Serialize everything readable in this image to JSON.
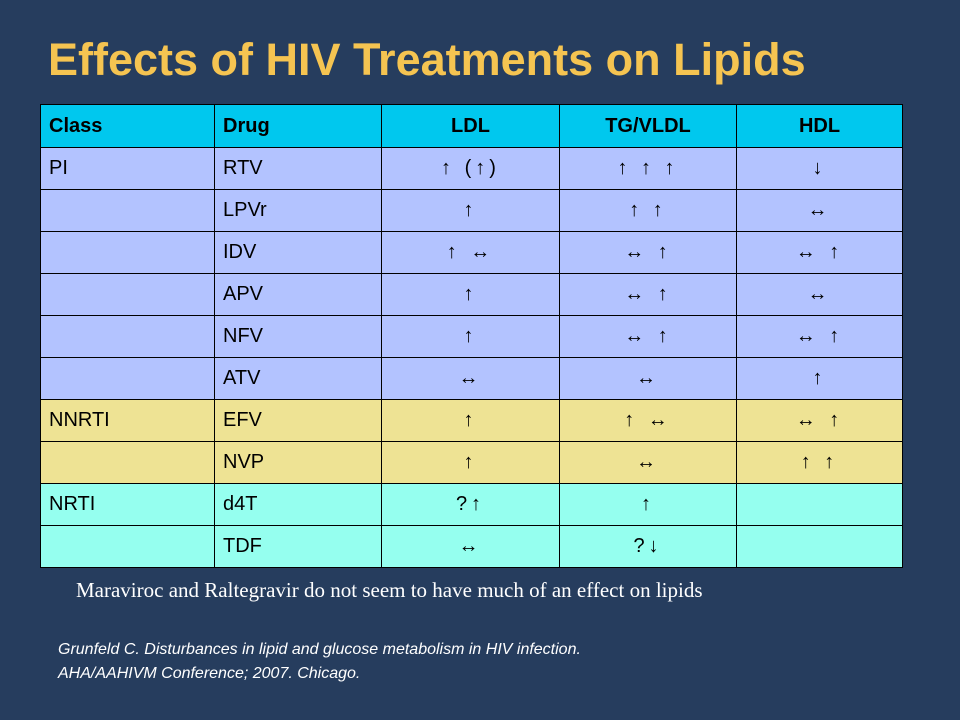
{
  "slide": {
    "title": "Effects of HIV Treatments on Lipids",
    "note": "Maraviroc and Raltegravir do not seem to have much of an effect on lipids",
    "citation": {
      "line1": "Grunfeld C. Disturbances in lipid and glucose metabolism in HIV infection.",
      "line2": "AHA/AAHIVM Conference; 2007. Chicago."
    }
  },
  "colors": {
    "background": "#263d5e",
    "title": "#f5c451",
    "header_row": "#00c8ee",
    "pi_rows": "#b3c3ff",
    "nnrti_rows": "#eee394",
    "nrti_rows": "#95ffef"
  },
  "table": {
    "headers": [
      "Class",
      "Drug",
      "LDL",
      "TG/VLDL",
      "HDL"
    ],
    "rows": [
      [
        "PI",
        "RTV",
        "↑ (↑)",
        "↑ ↑ ↑",
        "↓"
      ],
      [
        "",
        "LPVr",
        "↑",
        "↑ ↑",
        "↔"
      ],
      [
        "",
        "IDV",
        "↑ ↔",
        "↔ ↑",
        "↔ ↑"
      ],
      [
        "",
        "APV",
        "↑",
        "↔ ↑",
        "↔"
      ],
      [
        "",
        "NFV",
        "↑",
        "↔ ↑",
        "↔ ↑"
      ],
      [
        "",
        "ATV",
        "↔",
        "↔",
        "↑"
      ],
      [
        "NNRTI",
        "EFV",
        "↑",
        "↑ ↔",
        "↔ ↑"
      ],
      [
        "",
        "NVP",
        "↑",
        "↔",
        "↑ ↑"
      ],
      [
        "NRTI",
        "d4T",
        "?↑",
        "↑",
        ""
      ],
      [
        "",
        "TDF",
        "↔",
        "?↓",
        ""
      ]
    ]
  }
}
